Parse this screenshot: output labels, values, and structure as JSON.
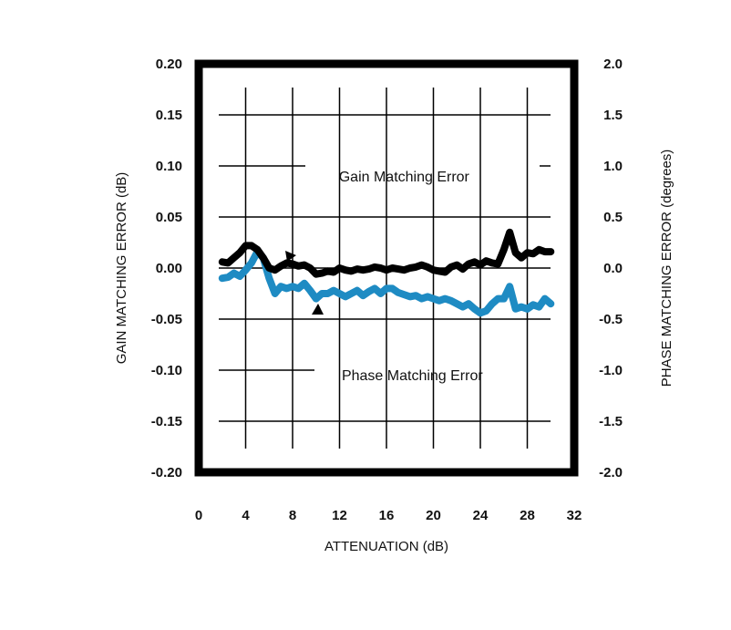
{
  "chart_data": {
    "type": "line",
    "xlabel": "ATTENUATION (dB)",
    "ylabel_left": "GAIN MATCHING ERROR (dB)",
    "ylabel_right": "PHASE MATCHING ERROR (degrees)",
    "xlim": [
      0,
      32
    ],
    "ylim_left": [
      -0.2,
      0.2
    ],
    "ylim_right": [
      -2.0,
      2.0
    ],
    "x_ticks": [
      "0",
      "4",
      "8",
      "12",
      "16",
      "20",
      "24",
      "28",
      "32"
    ],
    "y_ticks_left": [
      "0.20",
      "0.15",
      "0.10",
      "0.05",
      "0.00",
      "-0.05",
      "-0.10",
      "-0.15",
      "-0.20"
    ],
    "y_ticks_right": [
      "2.0",
      "1.5",
      "1.0",
      "0.5",
      "0.0",
      "-0.5",
      "-1.0",
      "-1.5",
      "-2.0"
    ],
    "grid": true,
    "annotations": [
      {
        "text": "Gain Matching Error",
        "x": 17.5,
        "y": 0.085
      },
      {
        "text": "Phase Matching Error",
        "x": 18.2,
        "y": -0.11
      }
    ],
    "series": [
      {
        "axis": "left",
        "color": "#000000",
        "x": [
          2.0,
          2.5,
          3.0,
          3.5,
          4.0,
          4.5,
          5.0,
          5.5,
          6.0,
          6.5,
          7.0,
          7.5,
          8.0,
          8.5,
          9.0,
          9.5,
          10.0,
          10.5,
          11.0,
          11.5,
          12.0,
          12.5,
          13.0,
          13.5,
          14.0,
          14.5,
          15.0,
          15.5,
          16.0,
          16.5,
          17.0,
          17.5,
          18.0,
          18.5,
          19.0,
          19.5,
          20.0,
          20.5,
          21.0,
          21.5,
          22.0,
          22.5,
          23.0,
          23.5,
          24.0,
          24.5,
          25.0,
          25.5,
          26.0,
          26.5,
          27.0,
          27.5,
          28.0,
          28.5,
          29.0,
          29.5,
          30.0
        ],
        "values": [
          0.006,
          0.005,
          0.01,
          0.015,
          0.022,
          0.022,
          0.018,
          0.01,
          0.0,
          -0.002,
          0.002,
          0.005,
          0.004,
          0.002,
          0.003,
          0.0,
          -0.006,
          -0.005,
          -0.003,
          -0.004,
          0.0,
          -0.002,
          -0.003,
          -0.001,
          -0.002,
          -0.001,
          0.001,
          0.0,
          -0.002,
          0.0,
          -0.001,
          -0.002,
          0.0,
          0.001,
          0.003,
          0.001,
          -0.002,
          -0.003,
          -0.004,
          0.001,
          0.003,
          -0.001,
          0.004,
          0.006,
          0.003,
          0.007,
          0.005,
          0.004,
          0.018,
          0.035,
          0.015,
          0.01,
          0.015,
          0.014,
          0.018,
          0.016,
          0.016
        ]
      },
      {
        "axis": "right",
        "color": "#1e8bc3",
        "x": [
          2.0,
          2.5,
          3.0,
          3.5,
          4.0,
          4.5,
          5.0,
          5.5,
          6.0,
          6.5,
          7.0,
          7.5,
          8.0,
          8.5,
          9.0,
          9.5,
          10.0,
          10.5,
          11.0,
          11.5,
          12.0,
          12.5,
          13.0,
          13.5,
          14.0,
          14.5,
          15.0,
          15.5,
          16.0,
          16.5,
          17.0,
          17.5,
          18.0,
          18.5,
          19.0,
          19.5,
          20.0,
          20.5,
          21.0,
          21.5,
          22.0,
          22.5,
          23.0,
          23.5,
          24.0,
          24.5,
          25.0,
          25.5,
          26.0,
          26.5,
          27.0,
          27.5,
          28.0,
          28.5,
          29.0,
          29.5,
          30.0
        ],
        "values": [
          -0.1,
          -0.09,
          -0.05,
          -0.08,
          -0.02,
          0.05,
          0.16,
          0.1,
          -0.1,
          -0.25,
          -0.18,
          -0.2,
          -0.18,
          -0.2,
          -0.15,
          -0.22,
          -0.3,
          -0.25,
          -0.25,
          -0.22,
          -0.25,
          -0.28,
          -0.25,
          -0.22,
          -0.27,
          -0.23,
          -0.2,
          -0.25,
          -0.2,
          -0.2,
          -0.24,
          -0.26,
          -0.28,
          -0.27,
          -0.3,
          -0.28,
          -0.3,
          -0.32,
          -0.3,
          -0.32,
          -0.35,
          -0.38,
          -0.35,
          -0.4,
          -0.44,
          -0.42,
          -0.35,
          -0.3,
          -0.3,
          -0.18,
          -0.4,
          -0.38,
          -0.4,
          -0.36,
          -0.38,
          -0.3,
          -0.35
        ]
      }
    ]
  }
}
